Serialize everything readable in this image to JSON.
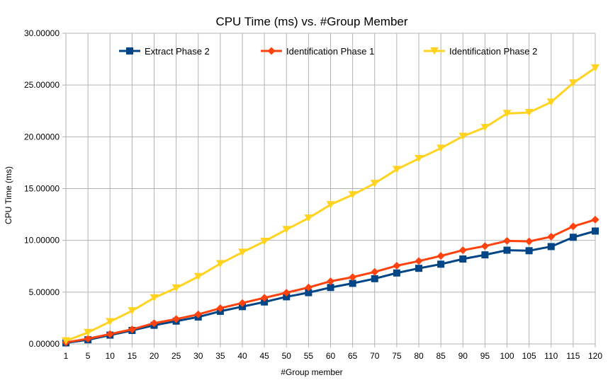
{
  "chart_data": {
    "type": "line",
    "title": "CPU Time (ms) vs. #Group Member",
    "xlabel": "#Group member",
    "ylabel": "CPU Time (ms)",
    "ylim": [
      0,
      30
    ],
    "y_ticks": [
      "0.00000",
      "5.00000",
      "10.00000",
      "15.00000",
      "20.00000",
      "25.00000",
      "30.00000"
    ],
    "y_tick_values": [
      0,
      5,
      10,
      15,
      20,
      25,
      30
    ],
    "categories": [
      "1",
      "5",
      "10",
      "15",
      "20",
      "25",
      "30",
      "35",
      "40",
      "45",
      "50",
      "55",
      "60",
      "65",
      "70",
      "75",
      "80",
      "85",
      "90",
      "95",
      "100",
      "105",
      "110",
      "115",
      "120"
    ],
    "grid": true,
    "legend_position": "top",
    "series": [
      {
        "name": "Extract Phase 2",
        "color": "#004586",
        "marker": "square",
        "values": [
          0.1,
          0.4,
          0.85,
          1.3,
          1.8,
          2.2,
          2.6,
          3.15,
          3.6,
          4.05,
          4.55,
          4.95,
          5.45,
          5.85,
          6.3,
          6.85,
          7.3,
          7.7,
          8.2,
          8.6,
          9.05,
          9.0,
          9.4,
          10.3,
          10.9
        ]
      },
      {
        "name": "Identification Phase 1",
        "color": "#ff420e",
        "marker": "diamond",
        "values": [
          0.15,
          0.5,
          0.95,
          1.4,
          2.0,
          2.4,
          2.85,
          3.45,
          3.95,
          4.45,
          4.95,
          5.45,
          6.05,
          6.45,
          6.95,
          7.55,
          8.0,
          8.5,
          9.05,
          9.45,
          9.95,
          9.9,
          10.35,
          11.35,
          12.0
        ]
      },
      {
        "name": "Identification Phase 2",
        "color": "#ffd320",
        "marker": "triangle-down",
        "values": [
          0.3,
          1.1,
          2.15,
          3.2,
          4.45,
          5.4,
          6.5,
          7.75,
          8.85,
          9.9,
          11.05,
          12.15,
          13.45,
          14.4,
          15.5,
          16.85,
          17.9,
          18.9,
          20.05,
          20.9,
          22.25,
          22.35,
          23.35,
          25.2,
          26.65
        ]
      }
    ]
  }
}
